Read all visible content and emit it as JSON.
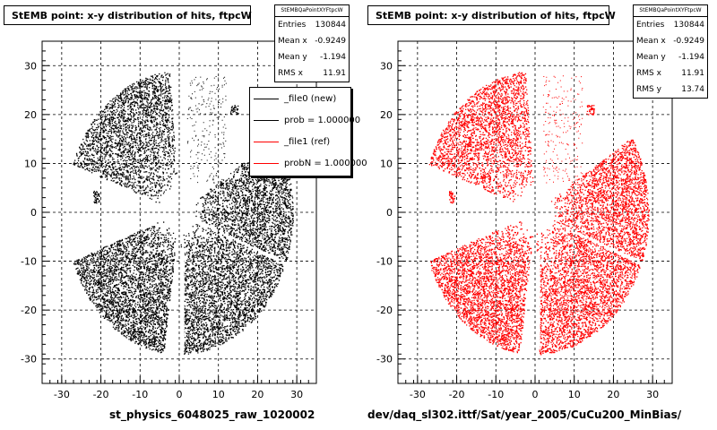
{
  "charts": [
    {
      "title": "StEMB point: x-y distribution of hits, ftpcW",
      "xlabel": "st_physics_6048025_raw_1020002",
      "color": "#000000",
      "stats": {
        "name": "StEMBQaPointXYFtpcW",
        "rows": [
          {
            "label": "Entries",
            "value": "130844"
          },
          {
            "label": "Mean x",
            "value": "-0.9249"
          },
          {
            "label": "Mean y",
            "value": "-1.194"
          },
          {
            "label": "RMS x",
            "value": "11.91"
          }
        ]
      },
      "legend": [
        {
          "label": "_file0 (new)",
          "color": "#000000"
        },
        {
          "label": "prob = 1.000000",
          "color": "#000000"
        },
        {
          "label": "_file1 (ref)",
          "color": "#ff0000"
        },
        {
          "label": "probN = 1.000000",
          "color": "#ff0000"
        }
      ]
    },
    {
      "title": "StEMB point: x-y distribution of hits, ftpcW",
      "xlabel": "dev/daq_sl302.ittf/Sat/year_2005/CuCu200_MinBias/",
      "color": "#ff0000",
      "stats": {
        "name": "StEMBQaPointXYFtpcW",
        "rows": [
          {
            "label": "Entries",
            "value": "130844"
          },
          {
            "label": "Mean x",
            "value": "-0.9249"
          },
          {
            "label": "Mean y",
            "value": "-1.194"
          },
          {
            "label": "RMS x",
            "value": "11.91"
          },
          {
            "label": "RMS y",
            "value": "13.74"
          }
        ]
      }
    }
  ],
  "chart_data": [
    {
      "type": "scatter",
      "title": "StEMB point: x-y distribution of hits, ftpcW",
      "xlabel": "st_physics_6048025_raw_1020002",
      "ylabel": "",
      "xlim": [
        -35,
        35
      ],
      "ylim": [
        -35,
        35
      ],
      "xticks": [
        -30,
        -20,
        -10,
        0,
        10,
        20,
        30
      ],
      "yticks": [
        -30,
        -20,
        -10,
        0,
        10,
        20,
        30
      ],
      "grid": true,
      "series": [
        {
          "name": "_file0 (new)",
          "color": "#000000"
        }
      ],
      "legend_position": "top-right"
    },
    {
      "type": "scatter",
      "title": "StEMB point: x-y distribution of hits, ftpcW",
      "xlabel": "dev/daq_sl302.ittf/Sat/year_2005/CuCu200_MinBias/",
      "ylabel": "",
      "xlim": [
        -35,
        35
      ],
      "ylim": [
        -35,
        35
      ],
      "xticks": [
        -30,
        -20,
        -10,
        0,
        10,
        20,
        30
      ],
      "yticks": [
        -30,
        -20,
        -10,
        0,
        10,
        20,
        30
      ],
      "grid": true,
      "series": [
        {
          "name": "_file1 (ref)",
          "color": "#ff0000"
        }
      ]
    }
  ]
}
